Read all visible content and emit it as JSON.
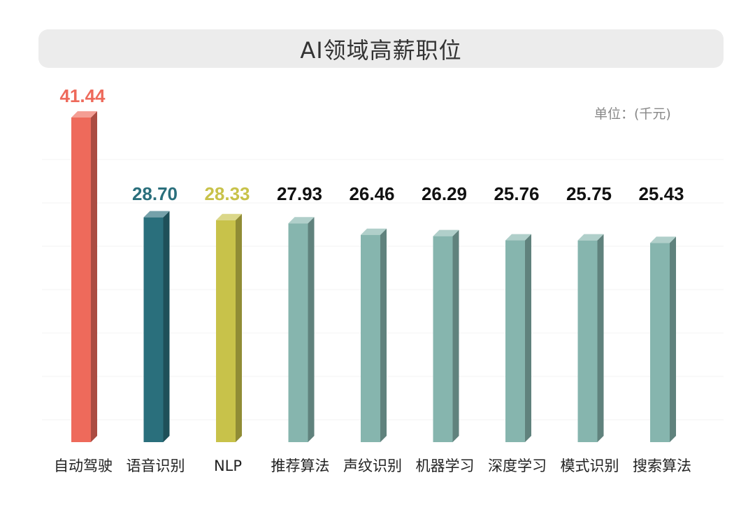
{
  "title": "AI领域高薪职位",
  "unit": "单位：(千元)",
  "colors": {
    "highlight_1": "#EE6A5B",
    "highlight_2": "#2A6F7C",
    "highlight_3": "#C8C24A",
    "default": "#86B5AE",
    "label_default": "#111111"
  },
  "chart_data": {
    "type": "bar",
    "categories": [
      "自动驾驶",
      "语音识别",
      "NLP",
      "推荐算法",
      "声纹识别",
      "机器学习",
      "深度学习",
      "模式识别",
      "搜索算法"
    ],
    "values": [
      41.44,
      28.7,
      28.33,
      27.93,
      26.46,
      26.29,
      25.76,
      25.75,
      25.43
    ],
    "value_labels": [
      "41.44",
      "28.70",
      "28.33",
      "27.93",
      "26.46",
      "26.29",
      "25.76",
      "25.75",
      "25.43"
    ],
    "ylim": [
      0,
      42
    ],
    "grid": false,
    "legend": "none"
  }
}
